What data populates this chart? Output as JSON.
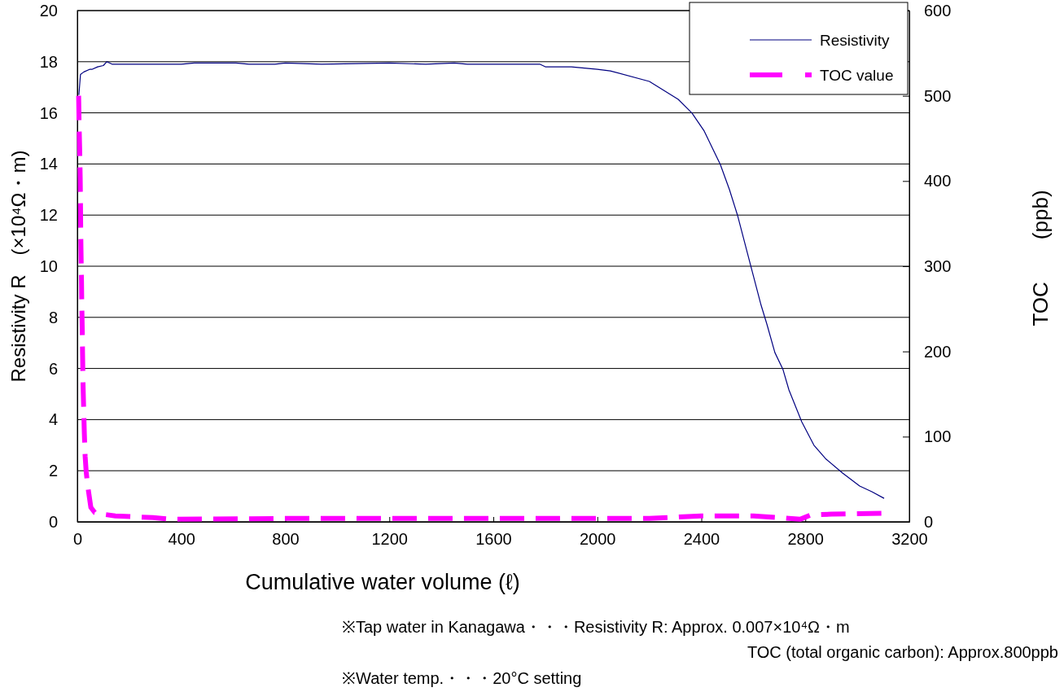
{
  "chart_data": {
    "type": "line",
    "xlabel": "Cumulative water volume (ℓ)",
    "ylabel": "Resistivity R　(×10⁴Ω・m)",
    "y2label": "TOC　　(ppb)",
    "xlim": [
      0,
      3200
    ],
    "xticks": [
      0,
      400,
      800,
      1200,
      1600,
      2000,
      2400,
      2800,
      3200
    ],
    "ylim": [
      0,
      20
    ],
    "yticks": [
      0,
      2,
      4,
      6,
      8,
      10,
      12,
      14,
      16,
      18,
      20
    ],
    "y2lim": [
      0,
      600
    ],
    "y2ticks": [
      0,
      100,
      200,
      300,
      400,
      500,
      600
    ],
    "grid": "y",
    "legend": "top right",
    "marker": "none",
    "series": [
      {
        "name": "Resistivity",
        "color": "#000080",
        "line_style": "solid",
        "x": [
          6,
          12,
          25,
          47,
          56,
          78,
          100,
          113,
          135,
          400,
          450,
          610,
          660,
          760,
          800,
          940,
          1200,
          1340,
          1450,
          1500,
          1780,
          1800,
          1900,
          2000,
          2050,
          2200,
          2311,
          2364,
          2411,
          2473,
          2508,
          2539,
          2592,
          2630,
          2652,
          2683,
          2714,
          2737,
          2786,
          2833,
          2880,
          2943,
          3009,
          3056,
          3103
        ],
        "values": [
          16.7,
          17.5,
          17.6,
          17.7,
          17.7,
          17.8,
          17.85,
          18.0,
          17.9,
          17.9,
          17.95,
          17.95,
          17.9,
          17.9,
          17.95,
          17.9,
          17.95,
          17.9,
          17.95,
          17.9,
          17.9,
          17.8,
          17.8,
          17.7,
          17.64,
          17.23,
          16.53,
          15.99,
          15.29,
          13.98,
          13.0,
          12.0,
          9.94,
          8.47,
          7.74,
          6.62,
          5.96,
          5.16,
          3.92,
          3.0,
          2.45,
          1.91,
          1.4,
          1.18,
          0.92
        ]
      },
      {
        "name": "TOC value",
        "color": "#ff00ff",
        "line_style": "dashed",
        "axis": "y2",
        "x": [
          5,
          7,
          9,
          11,
          12,
          13,
          14,
          16,
          17,
          19,
          20,
          22,
          24,
          27,
          30,
          34,
          40,
          52,
          67,
          97,
          146,
          291,
          363,
          800,
          1200,
          1600,
          2000,
          2200,
          2400,
          2600,
          2700,
          2780,
          2820,
          2900,
          3100
        ],
        "values": [
          500,
          463,
          437,
          404,
          378,
          342,
          320,
          283,
          257,
          224,
          199,
          161,
          137,
          103,
          77,
          59,
          42,
          17,
          11,
          9,
          7,
          5,
          3,
          4,
          4,
          4,
          4,
          4,
          7,
          7,
          5,
          3,
          8,
          9,
          10
        ]
      }
    ],
    "annotations": [
      "※Tap water in Kanagawa・・・Resistivity R: Approx. 0.007×10⁴Ω・m",
      "TOC (total organic carbon): Approx.800ppb",
      "※Water temp.・・・20°C setting"
    ]
  }
}
